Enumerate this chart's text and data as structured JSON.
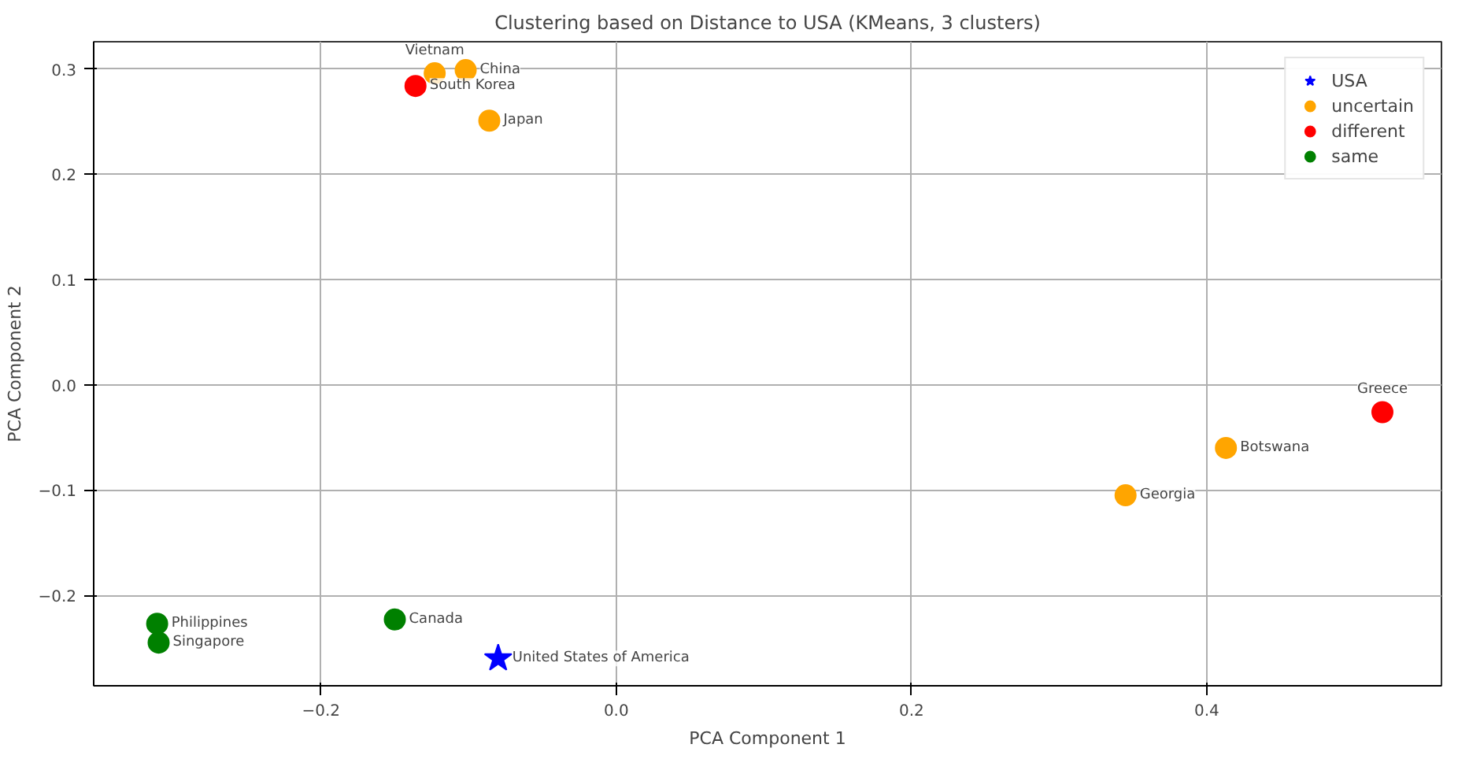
{
  "chart_data": {
    "type": "scatter",
    "title": "Clustering based on Distance to USA (KMeans, 3 clusters)",
    "xlabel": "PCA Component 1",
    "ylabel": "PCA Component 2",
    "series": [
      {
        "name": "USA",
        "color": "#0000ff",
        "marker": "star",
        "x": [
          -0.08
        ],
        "values": [
          -0.26
        ]
      },
      {
        "name": "uncertain",
        "color": "#ffa500",
        "marker": "circle",
        "x": [
          -0.123,
          -0.102,
          -0.086,
          0.413,
          0.345
        ],
        "values": [
          0.296,
          0.299,
          0.251,
          -0.06,
          -0.105
        ]
      },
      {
        "name": "different",
        "color": "#ff0000",
        "marker": "circle",
        "x": [
          -0.136,
          0.519
        ],
        "values": [
          0.284,
          -0.026
        ]
      },
      {
        "name": "same",
        "color": "#008000",
        "marker": "circle",
        "x": [
          -0.311,
          -0.31,
          -0.15
        ],
        "values": [
          -0.227,
          -0.245,
          -0.223
        ]
      }
    ],
    "annotations": [
      {
        "text": "United States of America",
        "x": -0.08,
        "y": -0.26
      },
      {
        "text": "Vietnam",
        "x": -0.123,
        "y": 0.296
      },
      {
        "text": "China",
        "x": -0.102,
        "y": 0.299
      },
      {
        "text": "Japan",
        "x": -0.086,
        "y": 0.251
      },
      {
        "text": "Botswana",
        "x": 0.413,
        "y": -0.06
      },
      {
        "text": "Georgia",
        "x": 0.345,
        "y": -0.105
      },
      {
        "text": "South Korea",
        "x": -0.136,
        "y": 0.284
      },
      {
        "text": "Greece",
        "x": 0.519,
        "y": -0.026
      },
      {
        "text": "Philippines",
        "x": -0.311,
        "y": -0.227
      },
      {
        "text": "Singapore",
        "x": -0.31,
        "y": -0.245
      },
      {
        "text": "Canada",
        "x": -0.15,
        "y": -0.223
      }
    ],
    "xlim": [
      -0.354,
      0.559
    ],
    "ylim": [
      -0.286,
      0.326
    ],
    "xticks": [
      {
        "value": -0.2,
        "label": "−0.2"
      },
      {
        "value": 0.0,
        "label": "0.0"
      },
      {
        "value": 0.2,
        "label": "0.2"
      },
      {
        "value": 0.4,
        "label": "0.4"
      }
    ],
    "yticks": [
      {
        "value": -0.2,
        "label": "−0.2"
      },
      {
        "value": -0.1,
        "label": "−0.1"
      },
      {
        "value": 0.0,
        "label": "0.0"
      },
      {
        "value": 0.1,
        "label": "0.1"
      },
      {
        "value": 0.2,
        "label": "0.2"
      },
      {
        "value": 0.3,
        "label": "0.3"
      }
    ],
    "grid": true,
    "legend": "top right"
  }
}
